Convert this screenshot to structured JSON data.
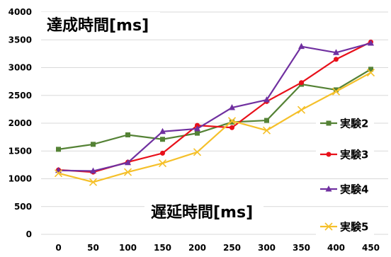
{
  "chart_data": {
    "type": "line",
    "title": "",
    "ylabel": "達成時間[ms]",
    "xlabel": "遅延時間[ms]",
    "x": [
      0,
      50,
      100,
      150,
      200,
      250,
      300,
      350,
      400,
      450
    ],
    "ylim": [
      0,
      4000
    ],
    "yticks": [
      0,
      500,
      1000,
      1500,
      2000,
      2500,
      3000,
      3500,
      4000
    ],
    "grid": "horizontal",
    "legend": "right",
    "series": [
      {
        "name": "実験2",
        "color": "#548235",
        "marker": "square",
        "values": [
          1530,
          1620,
          1790,
          1710,
          1820,
          2020,
          2050,
          2700,
          2600,
          2970
        ]
      },
      {
        "name": "実験3",
        "color": "#e8101a",
        "marker": "circle",
        "values": [
          1160,
          1120,
          1300,
          1460,
          1960,
          1920,
          2390,
          2730,
          3150,
          3460
        ]
      },
      {
        "name": "実験4",
        "color": "#7030a0",
        "marker": "triangle",
        "values": [
          1150,
          1140,
          1290,
          1850,
          1900,
          2280,
          2420,
          3380,
          3270,
          3440
        ]
      },
      {
        "name": "実験5",
        "color": "#f5c02a",
        "marker": "x",
        "values": [
          1100,
          940,
          1120,
          1280,
          1480,
          2040,
          1870,
          2240,
          2570,
          2910
        ]
      }
    ]
  }
}
